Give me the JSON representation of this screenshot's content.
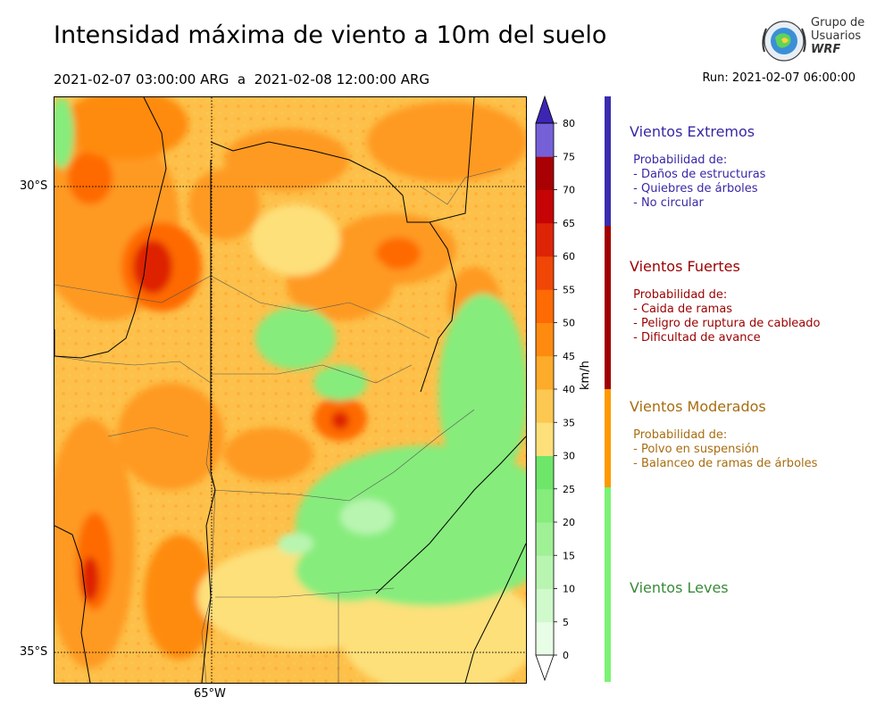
{
  "header": {
    "title": "Intensidad máxima de viento a 10m del suelo",
    "date_range": "2021-02-07 03:00:00 ARG  a  2021-02-08 12:00:00 ARG",
    "run": "Run: 2021-02-07 06:00:00"
  },
  "logo": {
    "line1": "Grupo de",
    "line2": "Usuarios",
    "line3": "WRF"
  },
  "map": {
    "lat_labels": [
      "30°S",
      "35°S"
    ],
    "lon_labels": [
      "65°W"
    ]
  },
  "colorbar": {
    "unit": "km/h",
    "ticks": [
      "0",
      "5",
      "10",
      "15",
      "20",
      "25",
      "30",
      "35",
      "40",
      "45",
      "50",
      "55",
      "60",
      "65",
      "70",
      "75",
      "80"
    ],
    "colors": [
      "#e8fde6",
      "#d0f9cc",
      "#b8f5b0",
      "#a0f195",
      "#86ec7c",
      "#6ee66a",
      "#fde07a",
      "#fdc851",
      "#fdab2a",
      "#fe8b10",
      "#fe6a03",
      "#f04706",
      "#de2406",
      "#c60405",
      "#a90004",
      "#7660d8",
      "#5741c9",
      "#3d25b4"
    ]
  },
  "categories": [
    {
      "title": "Vientos Extremos",
      "color": "#3728a6",
      "desc": " Probabilidad de:\n - Daños de estructuras\n - Quiebres de árboles\n - No circular"
    },
    {
      "title": "Vientos Fuertes",
      "color": "#9b0000",
      "desc": " Probabilidad de:\n - Caida de ramas\n - Peligro de ruptura de cableado\n - Dificultad de avance"
    },
    {
      "title": "Vientos Moderados",
      "color": "#a86d10",
      "desc": " Probabilidad de:\n - Polvo en suspensión\n - Balanceo de ramas de árboles"
    },
    {
      "title": "Vientos Leves",
      "color": "#3a8a3a",
      "desc": ""
    }
  ],
  "strip_colors": {
    "extremos": "#3a2cb0",
    "fuertes": "#a00000",
    "moderados": "#fe9a00",
    "leves": "#7af373"
  }
}
